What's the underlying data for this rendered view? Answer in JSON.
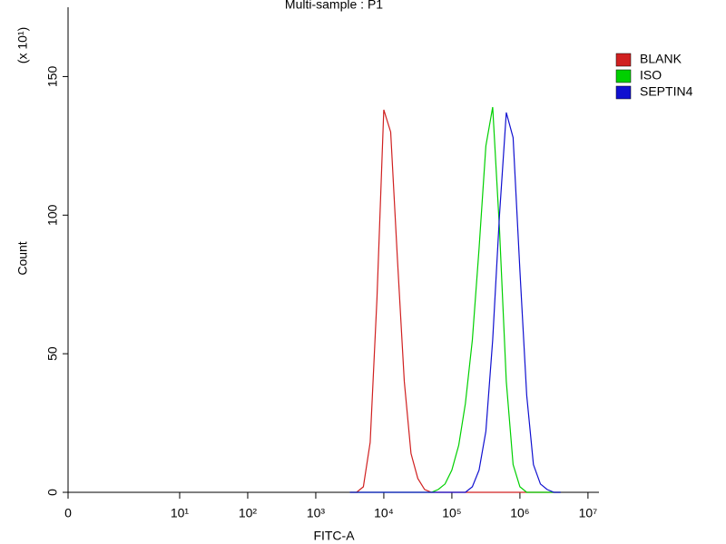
{
  "chart_data": {
    "type": "line",
    "title": "Multi-sample : P1",
    "x_label": "FITC-A",
    "y_label": "Count",
    "y_multiplier": "(x 10¹)",
    "x_scale": "biexponential",
    "x": [
      3160,
      3980,
      5010,
      6310,
      7940,
      10000,
      12600,
      15800,
      20000,
      25100,
      31600,
      39800,
      50100,
      63100,
      79400,
      100000,
      126000,
      158000,
      200000,
      251000,
      316000,
      398000,
      501000,
      631000,
      794000,
      1000000,
      1260000,
      1580000,
      2000000,
      2510000,
      3160000,
      3980000
    ],
    "series": [
      {
        "name": "BLANK",
        "color": "#d02020",
        "values": [
          0,
          0,
          2,
          18,
          70,
          138,
          130,
          85,
          40,
          14,
          5,
          1,
          0,
          0,
          0,
          0,
          0,
          0,
          0,
          0,
          0,
          0,
          0,
          0,
          0,
          0,
          0,
          0,
          0,
          0,
          0,
          0
        ]
      },
      {
        "name": "ISO",
        "color": "#00d000",
        "values": [
          0,
          0,
          0,
          0,
          0,
          0,
          0,
          0,
          0,
          0,
          0,
          0,
          0,
          1,
          3,
          8,
          17,
          32,
          55,
          88,
          125,
          139,
          95,
          40,
          10,
          2,
          0,
          0,
          0,
          0,
          0,
          0
        ]
      },
      {
        "name": "SEPTIN4",
        "color": "#1010d0",
        "values": [
          0,
          0,
          0,
          0,
          0,
          0,
          0,
          0,
          0,
          0,
          0,
          0,
          0,
          0,
          0,
          0,
          0,
          0,
          2,
          8,
          22,
          55,
          100,
          137,
          128,
          80,
          35,
          10,
          3,
          1,
          0,
          0
        ]
      }
    ],
    "xlim": [
      0,
      14500000
    ],
    "xticks": [
      0,
      {
        "value": 10,
        "label": "10¹"
      },
      {
        "value": 100,
        "label": "10²"
      },
      {
        "value": 1000,
        "label": "10³"
      },
      {
        "value": 10000,
        "label": "10⁴"
      },
      {
        "value": 100000,
        "label": "10⁵"
      },
      {
        "value": 1000000,
        "label": "10⁶"
      },
      {
        "value": 10000000,
        "label": "10⁷"
      }
    ],
    "ylim": [
      0,
      175
    ],
    "yticks": [
      0,
      50,
      100,
      150
    ],
    "legend": "right"
  }
}
